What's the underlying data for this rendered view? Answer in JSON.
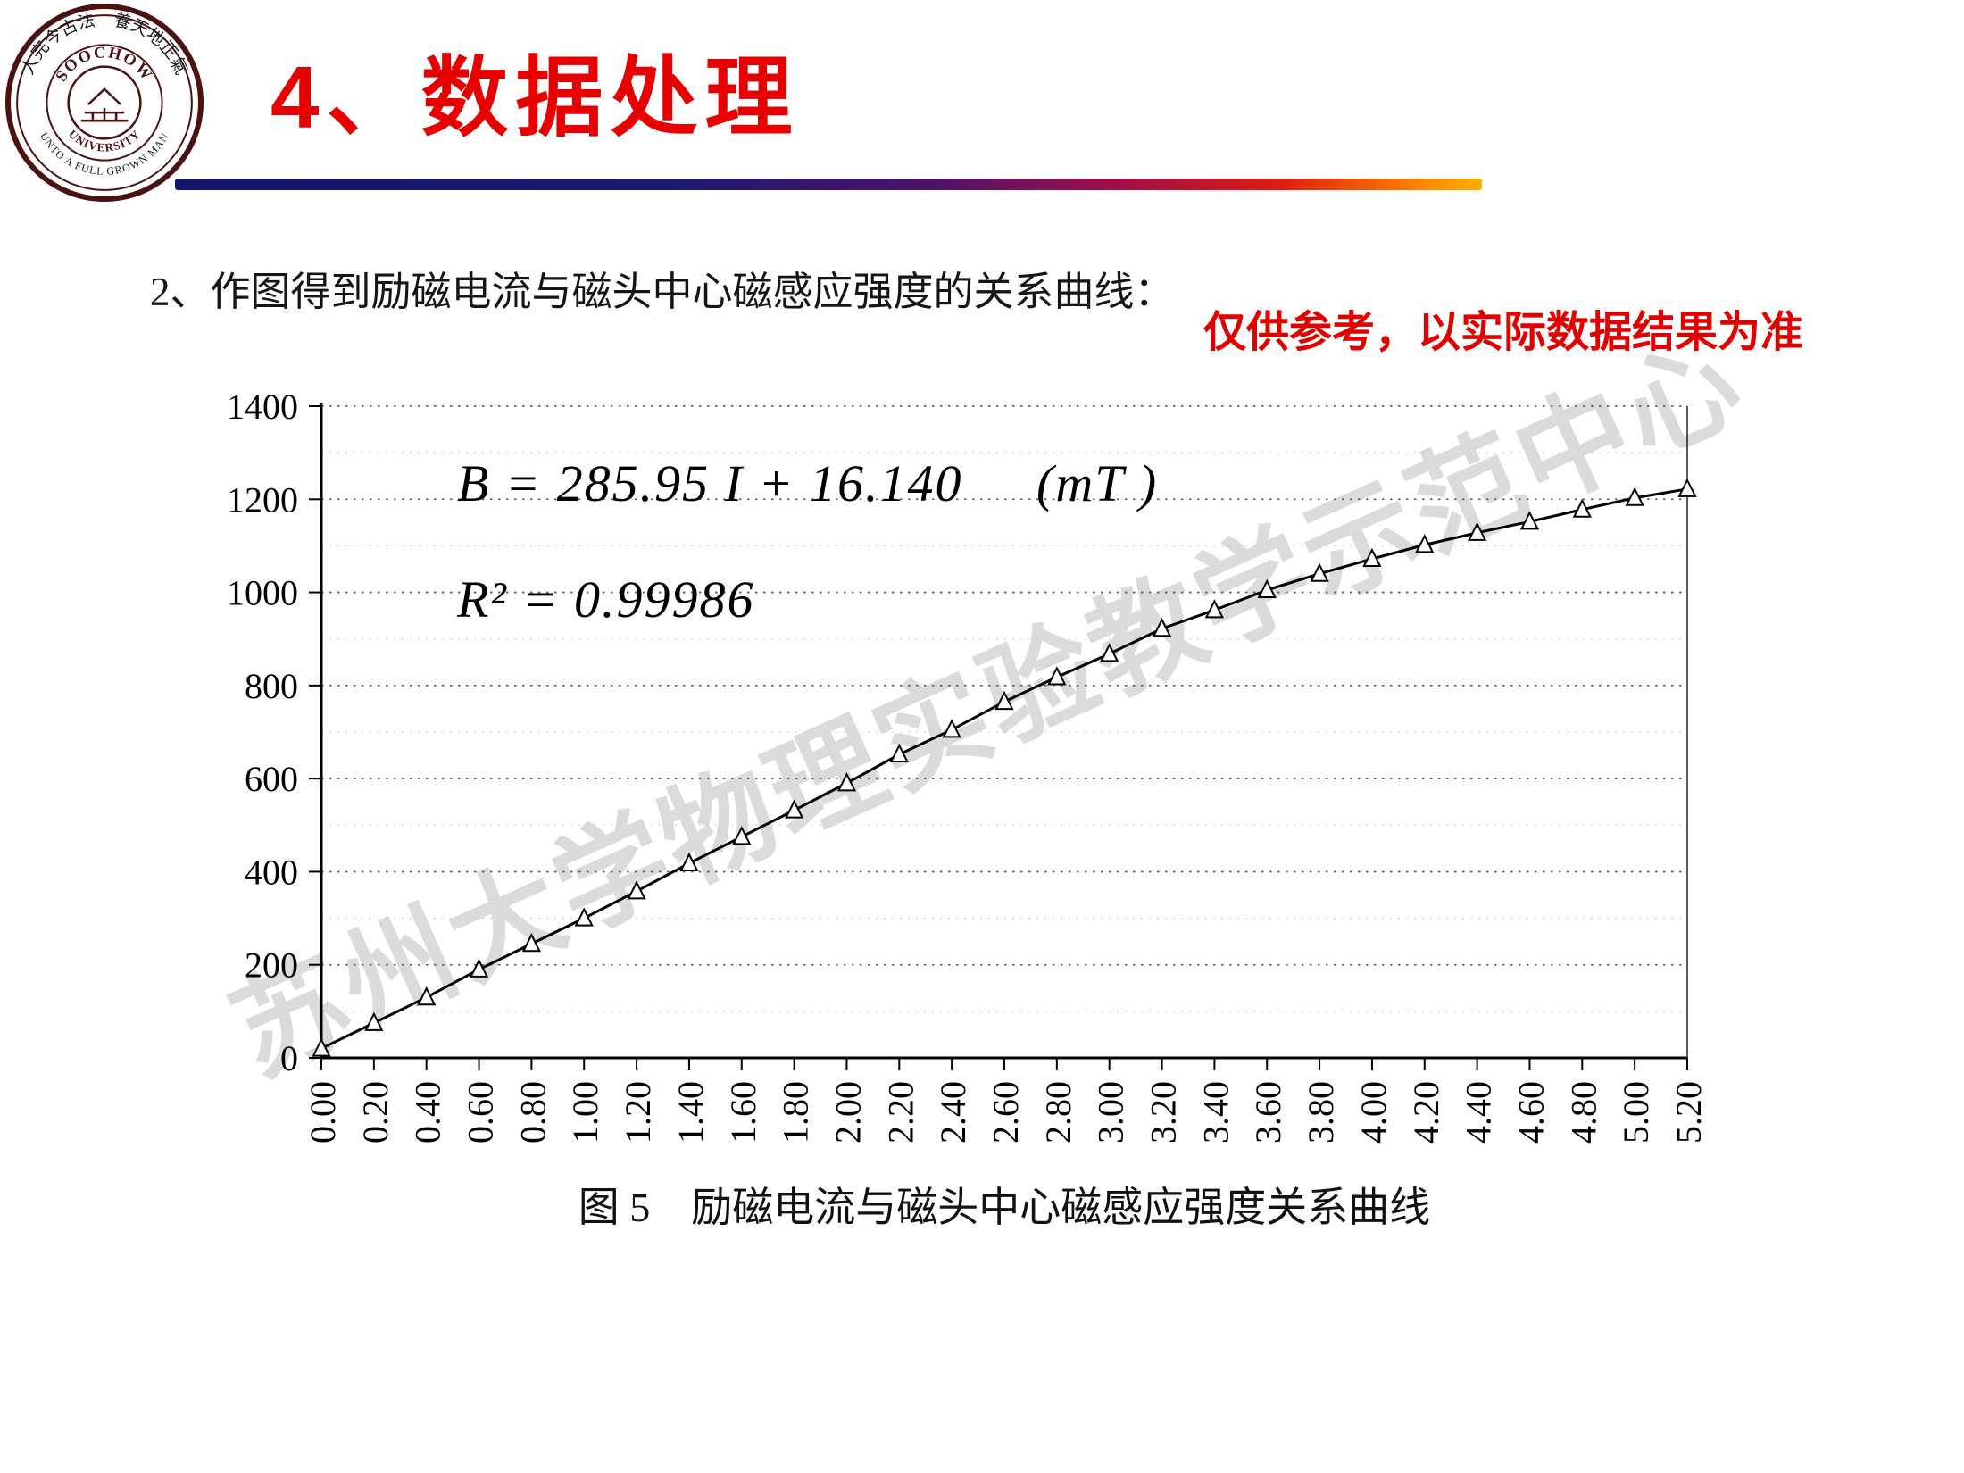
{
  "slide": {
    "title": "4、数据处理",
    "body_text": "2、作图得到励磁电流与磁头中心磁感应强度的关系曲线：",
    "reference_note": "仅供参考，以实际数据结果为准",
    "figure_caption": "图 5　励磁电流与磁头中心磁感应强度关系曲线",
    "watermark": "苏州大学物理实验教学示范中心"
  },
  "logo": {
    "ring_text_cn": "人完今古法　養天地正氣",
    "ring_text_en_bottom": "UNTO A FULL GROWN MAN",
    "inner_top": "SOOCHOW",
    "inner_bottom": "UNIVERSITY"
  },
  "colors": {
    "title_red": "#e60000",
    "note_red": "#e00000",
    "underline_gradient_start": "#15156a",
    "underline_gradient_end": "#ffae00",
    "seal_maroon": "#4a1212",
    "line_color": "#000000",
    "gridline_color": "#606060"
  },
  "chart_data": {
    "type": "line",
    "title": "",
    "xlabel": "",
    "ylabel": "",
    "annotation_equation": "B = 285.95 I + 16.140     (mT )",
    "annotation_r2": "R² = 0.99986",
    "x": [
      0.0,
      0.2,
      0.4,
      0.6,
      0.8,
      1.0,
      1.2,
      1.4,
      1.6,
      1.8,
      2.0,
      2.2,
      2.4,
      2.6,
      2.8,
      3.0,
      3.2,
      3.4,
      3.6,
      3.8,
      4.0,
      4.2,
      4.4,
      4.6,
      4.8,
      5.0,
      5.2
    ],
    "categories": [
      "0.00",
      "0.20",
      "0.40",
      "0.60",
      "0.80",
      "1.00",
      "1.20",
      "1.40",
      "1.60",
      "1.80",
      "2.00",
      "2.20",
      "2.40",
      "2.60",
      "2.80",
      "3.00",
      "3.20",
      "3.40",
      "3.60",
      "3.80",
      "4.00",
      "4.20",
      "4.40",
      "4.60",
      "4.80",
      "5.00",
      "5.20"
    ],
    "values": [
      20,
      75,
      130,
      190,
      245,
      300,
      358,
      418,
      475,
      532,
      590,
      652,
      705,
      765,
      818,
      868,
      922,
      962,
      1005,
      1040,
      1072,
      1102,
      1128,
      1152,
      1178,
      1203,
      1222
    ],
    "ylim": [
      0,
      1400
    ],
    "ytick_step": 200,
    "ytick_labels": [
      "0",
      "200",
      "400",
      "600",
      "800",
      "1000",
      "1200",
      "1400"
    ],
    "grid": "dotted-horizontal",
    "legend": "none",
    "marker": "open-triangle",
    "line_color": "#000000"
  }
}
